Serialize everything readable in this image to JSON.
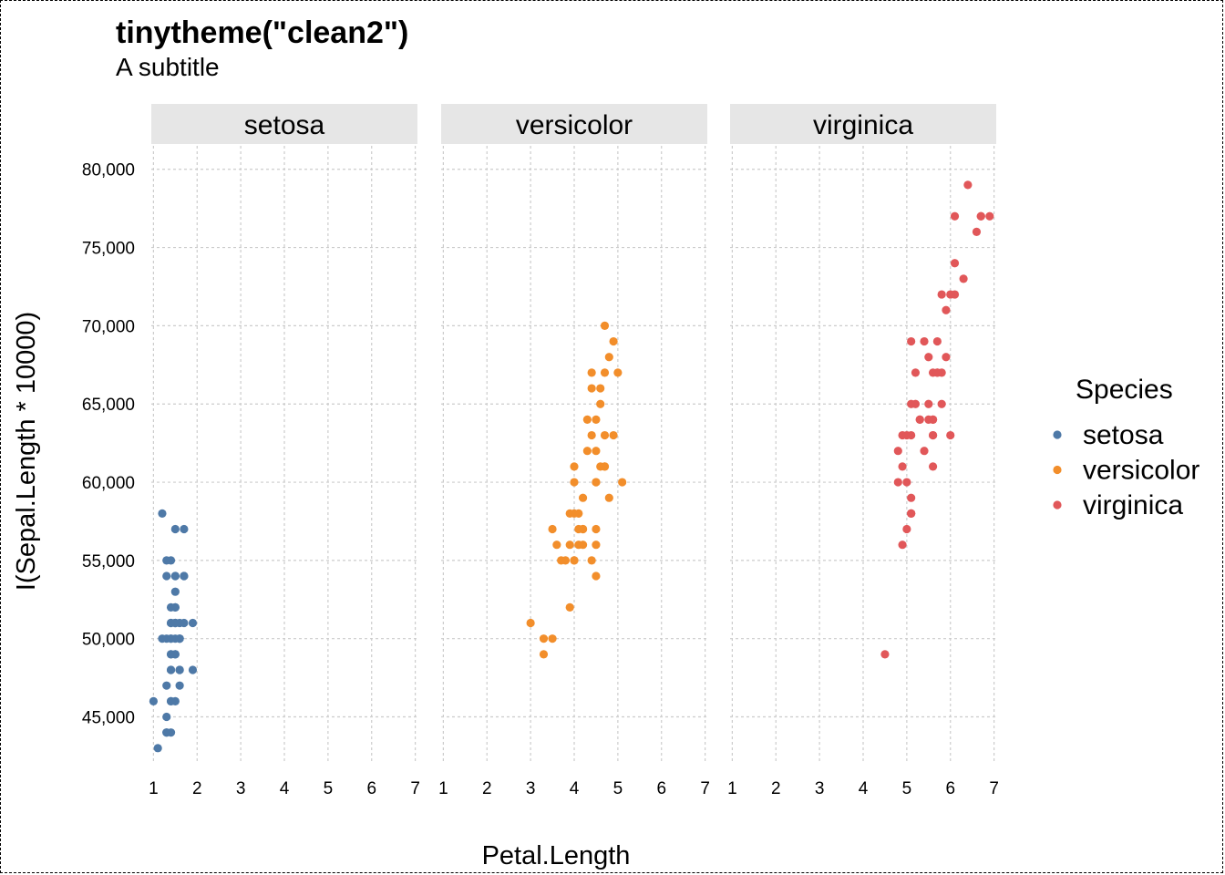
{
  "title": "tinytheme(\"clean2\")",
  "subtitle": "A subtitle",
  "chart_data": {
    "type": "scatter",
    "title": "tinytheme(\"clean2\")",
    "subtitle": "A subtitle",
    "xlabel": "Petal.Length",
    "ylabel": "I(Sepal.Length * 10000)",
    "facets": [
      "setosa",
      "versicolor",
      "virginica"
    ],
    "xlim": [
      0.95,
      7.05
    ],
    "ylim": [
      42000,
      81500
    ],
    "x_ticks": [
      1,
      2,
      3,
      4,
      5,
      6,
      7
    ],
    "y_ticks": [
      45000,
      50000,
      55000,
      60000,
      65000,
      70000,
      75000,
      80000
    ],
    "y_tick_labels": [
      "45,000",
      "50,000",
      "55,000",
      "60,000",
      "65,000",
      "70,000",
      "75,000",
      "80,000"
    ],
    "grid": true,
    "legend": {
      "title": "Species",
      "position": "right",
      "entries": [
        "setosa",
        "versicolor",
        "virginica"
      ]
    },
    "series": [
      {
        "name": "setosa",
        "color": "#4e79a7",
        "x": [
          1.4,
          1.4,
          1.3,
          1.5,
          1.4,
          1.7,
          1.4,
          1.5,
          1.4,
          1.5,
          1.5,
          1.6,
          1.4,
          1.1,
          1.2,
          1.5,
          1.3,
          1.4,
          1.7,
          1.5,
          1.7,
          1.5,
          1.0,
          1.7,
          1.9,
          1.6,
          1.6,
          1.5,
          1.4,
          1.6,
          1.6,
          1.5,
          1.5,
          1.4,
          1.5,
          1.2,
          1.3,
          1.4,
          1.3,
          1.5,
          1.3,
          1.3,
          1.3,
          1.6,
          1.9,
          1.4,
          1.6,
          1.4,
          1.5,
          1.4
        ],
        "y": [
          51000,
          49000,
          47000,
          46000,
          50000,
          54000,
          46000,
          50000,
          44000,
          49000,
          54000,
          48000,
          48000,
          43000,
          58000,
          57000,
          54000,
          51000,
          57000,
          51000,
          54000,
          51000,
          46000,
          51000,
          48000,
          50000,
          50000,
          52000,
          52000,
          47000,
          48000,
          54000,
          52000,
          55000,
          49000,
          50000,
          55000,
          49000,
          44000,
          51000,
          50000,
          45000,
          44000,
          50000,
          51000,
          48000,
          51000,
          46000,
          53000,
          50000
        ]
      },
      {
        "name": "versicolor",
        "color": "#f28e2b",
        "x": [
          4.7,
          4.5,
          4.9,
          4.0,
          4.6,
          4.5,
          4.7,
          3.3,
          4.6,
          3.9,
          3.5,
          4.2,
          4.0,
          4.7,
          3.6,
          4.4,
          4.5,
          4.1,
          4.5,
          3.9,
          4.8,
          4.0,
          4.9,
          4.7,
          4.3,
          4.4,
          4.8,
          5.0,
          4.5,
          3.5,
          3.8,
          3.7,
          3.9,
          5.1,
          4.5,
          4.5,
          4.7,
          4.4,
          4.1,
          4.0,
          4.4,
          4.6,
          4.0,
          3.3,
          4.2,
          4.2,
          4.2,
          4.3,
          3.0,
          4.1
        ],
        "y": [
          70000,
          64000,
          69000,
          55000,
          65000,
          57000,
          63000,
          49000,
          66000,
          52000,
          50000,
          59000,
          60000,
          61000,
          56000,
          67000,
          56000,
          58000,
          62000,
          56000,
          59000,
          61000,
          63000,
          61000,
          64000,
          66000,
          68000,
          67000,
          60000,
          57000,
          55000,
          55000,
          58000,
          60000,
          54000,
          60000,
          67000,
          63000,
          56000,
          55000,
          55000,
          61000,
          58000,
          50000,
          56000,
          57000,
          57000,
          62000,
          51000,
          57000
        ]
      },
      {
        "name": "virginica",
        "color": "#e15759",
        "x": [
          6.0,
          5.1,
          5.9,
          5.6,
          5.8,
          6.6,
          4.5,
          6.3,
          5.8,
          6.1,
          5.1,
          5.3,
          5.5,
          5.0,
          5.1,
          5.3,
          5.5,
          6.7,
          6.9,
          5.0,
          5.7,
          4.9,
          6.7,
          4.9,
          5.7,
          6.0,
          4.8,
          4.9,
          5.6,
          5.8,
          6.1,
          6.4,
          5.6,
          5.1,
          5.6,
          6.1,
          5.6,
          5.5,
          4.8,
          5.4,
          5.6,
          5.1,
          5.1,
          5.9,
          5.7,
          5.2,
          5.0,
          5.2,
          5.4,
          5.1
        ],
        "y": [
          63000,
          58000,
          71000,
          63000,
          65000,
          76000,
          49000,
          73000,
          67000,
          72000,
          65000,
          64000,
          68000,
          57000,
          58000,
          64000,
          65000,
          77000,
          77000,
          60000,
          69000,
          56000,
          77000,
          63000,
          67000,
          72000,
          62000,
          61000,
          64000,
          72000,
          74000,
          79000,
          64000,
          63000,
          61000,
          77000,
          63000,
          64000,
          60000,
          69000,
          67000,
          69000,
          58000,
          68000,
          67000,
          67000,
          63000,
          65000,
          62000,
          59000
        ]
      }
    ]
  }
}
